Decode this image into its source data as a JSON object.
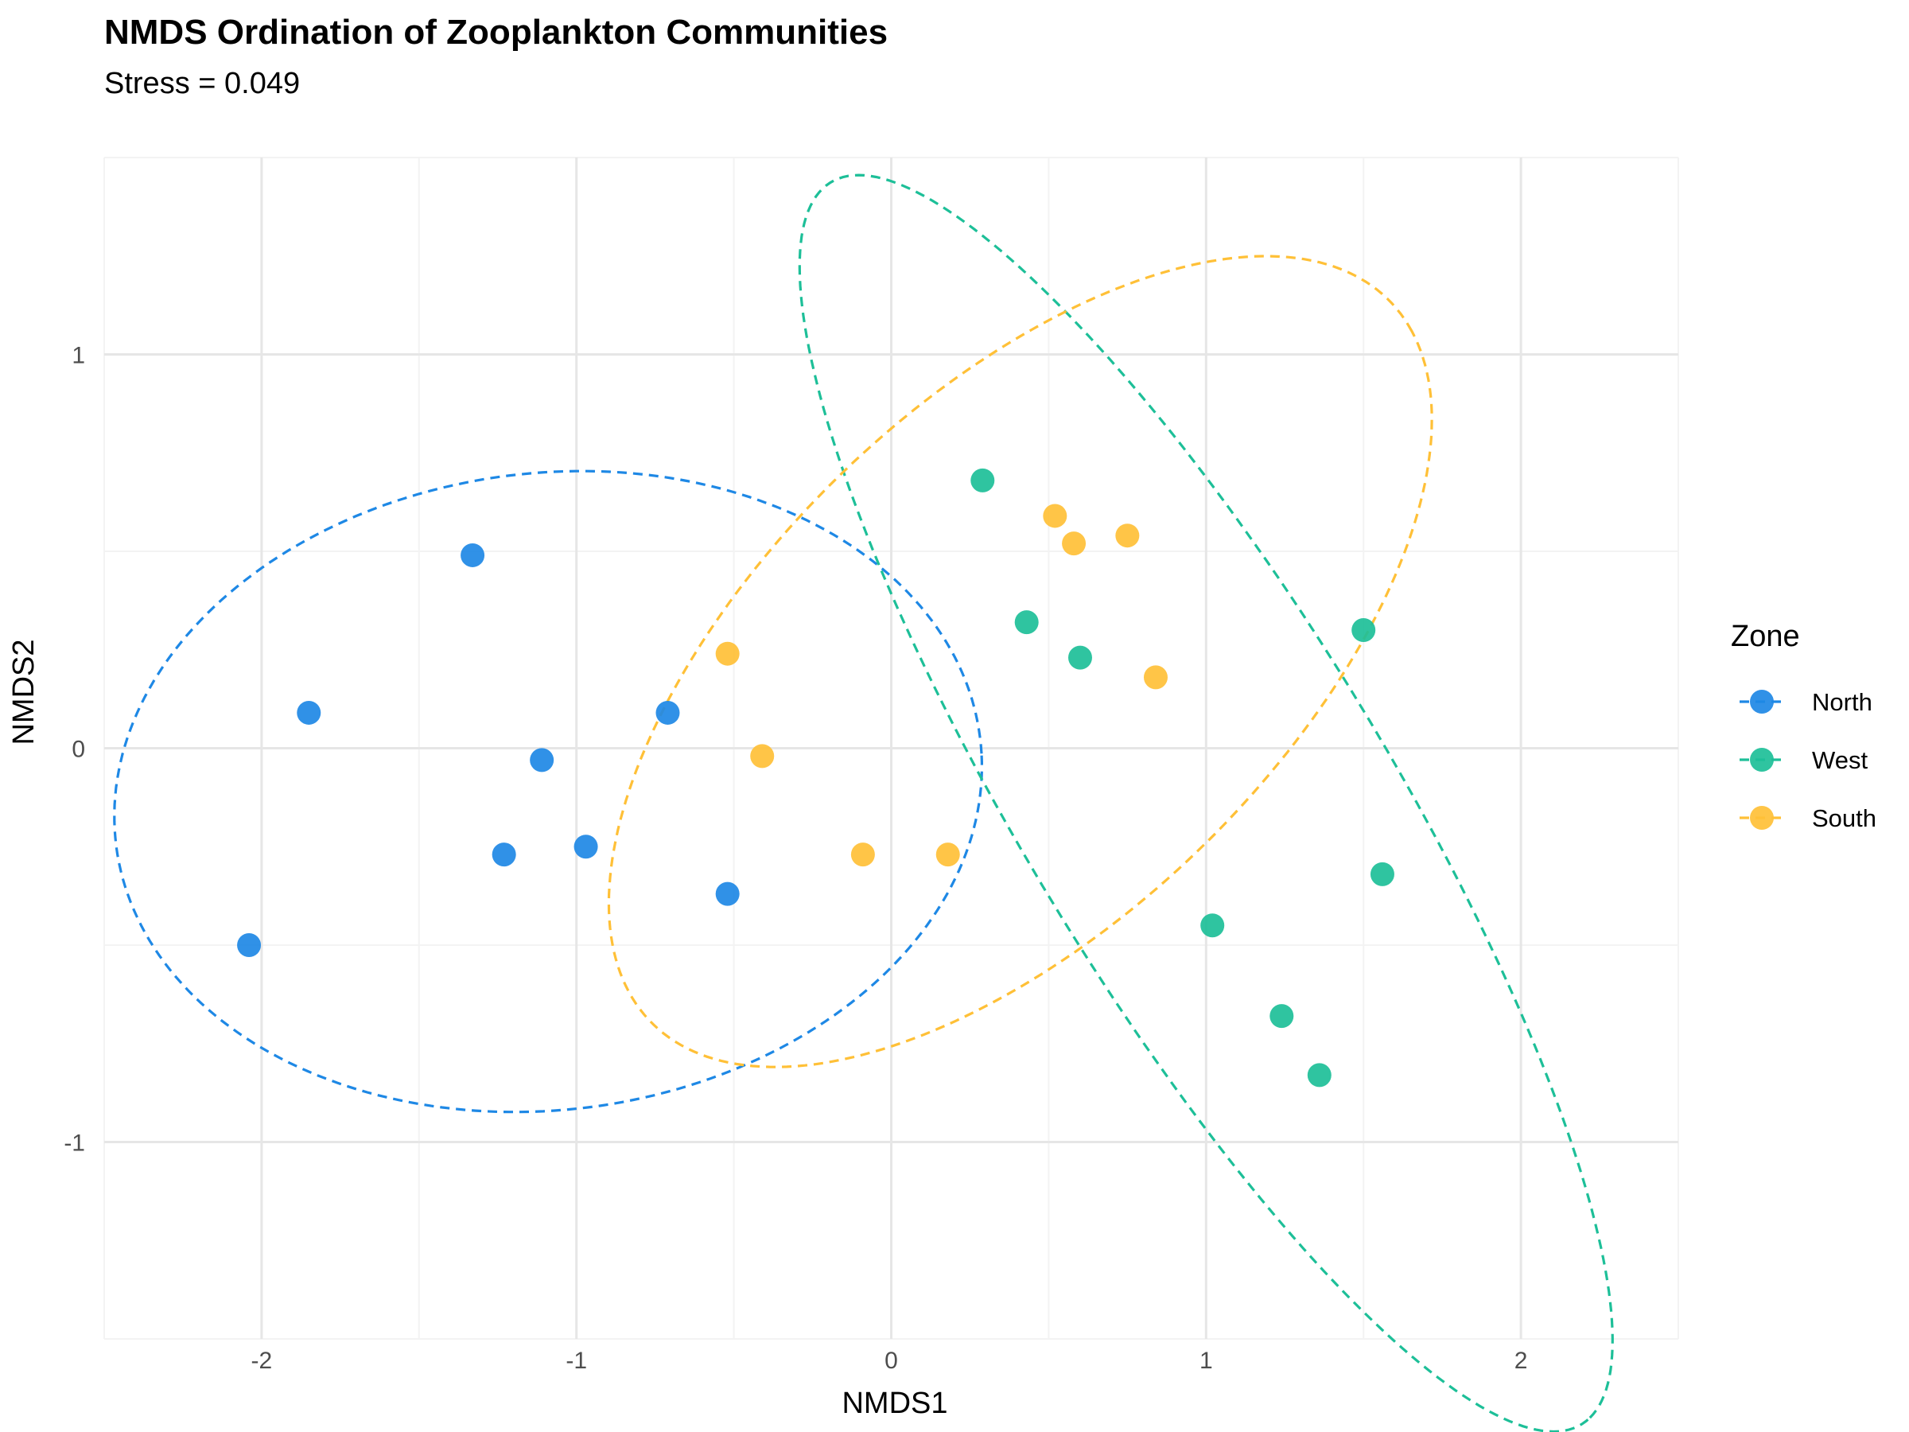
{
  "chart_data": {
    "type": "scatter",
    "title": "NMDS Ordination of Zooplankton Communities",
    "subtitle": "Stress = 0.049",
    "xlabel": "NMDS1",
    "ylabel": "NMDS2",
    "xlim": [
      -2.5,
      2.5
    ],
    "ylim": [
      -1.5,
      1.5
    ],
    "x_ticks": [
      {
        "value": -2,
        "label": "-2"
      },
      {
        "value": -1,
        "label": "-1"
      },
      {
        "value": 0,
        "label": "0"
      },
      {
        "value": 1,
        "label": "1"
      },
      {
        "value": 2,
        "label": "2"
      }
    ],
    "y_ticks": [
      {
        "value": -1,
        "label": "-1"
      },
      {
        "value": 0,
        "label": "0"
      },
      {
        "value": 1,
        "label": "1"
      }
    ],
    "grid": true,
    "legend": {
      "title": "Zone",
      "position": "right"
    },
    "series": [
      {
        "name": "North",
        "color": "#1E88E5",
        "points": [
          [
            -1.33,
            0.49
          ],
          [
            -1.85,
            0.09
          ],
          [
            -1.11,
            -0.03
          ],
          [
            -0.71,
            0.09
          ],
          [
            -1.23,
            -0.27
          ],
          [
            -0.97,
            -0.25
          ],
          [
            -0.52,
            -0.37
          ],
          [
            -2.04,
            -0.5
          ]
        ],
        "ellipse": {
          "cx": -1.09,
          "cy": -0.11,
          "rx": 1.38,
          "ry": 0.81,
          "angle_deg": 4
        }
      },
      {
        "name": "West",
        "color": "#1DBF98",
        "points": [
          [
            0.29,
            0.68
          ],
          [
            0.43,
            0.32
          ],
          [
            0.6,
            0.23
          ],
          [
            1.5,
            0.3
          ],
          [
            1.56,
            -0.32
          ],
          [
            1.02,
            -0.45
          ],
          [
            1.24,
            -0.68
          ],
          [
            1.36,
            -0.83
          ]
        ],
        "ellipse": {
          "cx": 1.0,
          "cy": -0.14,
          "rx": 1.98,
          "ry": 0.54,
          "angle_deg": -52
        }
      },
      {
        "name": "South",
        "color": "#FFC037",
        "points": [
          [
            -0.52,
            0.24
          ],
          [
            -0.41,
            -0.02
          ],
          [
            -0.09,
            -0.27
          ],
          [
            0.18,
            -0.27
          ],
          [
            0.52,
            0.59
          ],
          [
            0.58,
            0.52
          ],
          [
            0.75,
            0.54
          ],
          [
            0.84,
            0.18
          ]
        ],
        "ellipse": {
          "cx": 0.41,
          "cy": 0.22,
          "rx": 1.5,
          "ry": 0.72,
          "angle_deg": 34
        }
      }
    ]
  }
}
